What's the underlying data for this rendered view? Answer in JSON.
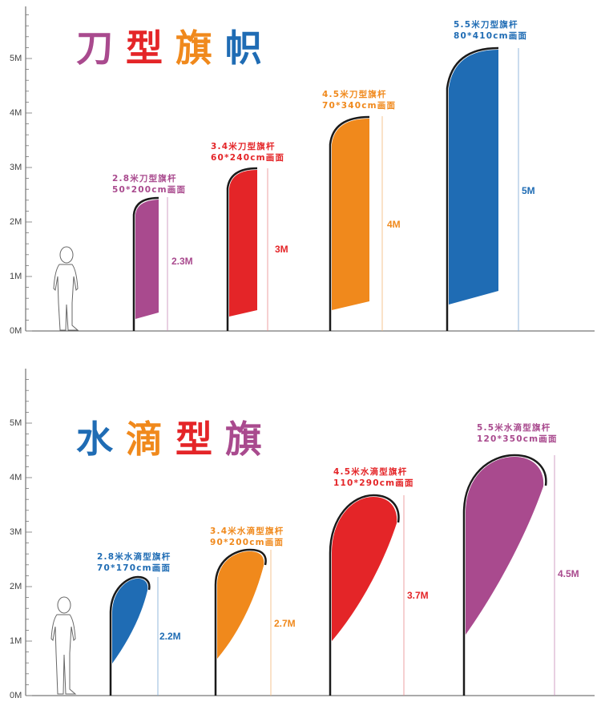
{
  "colors": {
    "blue": "#1f6cb4",
    "red": "#e42528",
    "orange": "#f0891c",
    "purple": "#a94a8e",
    "axis": "#555555",
    "pole": "#1a1a1a"
  },
  "axis_labels": [
    "0M",
    "1M",
    "2M",
    "3M",
    "4M",
    "5M"
  ],
  "sections": [
    {
      "id": "knife",
      "title_chars": [
        {
          "text": "刀",
          "color": "#a94a8e"
        },
        {
          "text": "型",
          "color": "#e42528"
        },
        {
          "text": "旗",
          "color": "#f0891c"
        },
        {
          "text": "帜",
          "color": "#1f6cb4"
        }
      ],
      "flags": [
        {
          "spec": "2.8米刀型旗杆",
          "size": "50*200cm画面",
          "height": "2.3M",
          "value": 2.3,
          "color": "#a94a8e"
        },
        {
          "spec": "3.4米刀型旗杆",
          "size": "60*240cm画面",
          "height": "3M",
          "value": 3,
          "color": "#e42528"
        },
        {
          "spec": "4.5米刀型旗杆",
          "size": "70*340cm画面",
          "height": "4M",
          "value": 4,
          "color": "#f0891c"
        },
        {
          "spec": "5.5米刀型旗杆",
          "size": "80*410cm画面",
          "height": "5M",
          "value": 5,
          "color": "#1f6cb4"
        }
      ]
    },
    {
      "id": "teardrop",
      "title_chars": [
        {
          "text": "水",
          "color": "#1f6cb4"
        },
        {
          "text": "滴",
          "color": "#f0891c"
        },
        {
          "text": "型",
          "color": "#e42528"
        },
        {
          "text": "旗",
          "color": "#a94a8e"
        }
      ],
      "flags": [
        {
          "spec": "2.8米水滴型旗杆",
          "size": "70*170cm画面",
          "height": "2.2M",
          "value": 2.2,
          "color": "#1f6cb4"
        },
        {
          "spec": "3.4米水滴型旗杆",
          "size": "90*200cm画面",
          "height": "2.7M",
          "value": 2.7,
          "color": "#f0891c"
        },
        {
          "spec": "4.5米水滴型旗杆",
          "size": "110*290cm画面",
          "height": "3.7M",
          "value": 3.7,
          "color": "#e42528"
        },
        {
          "spec": "5.5米水滴型旗杆",
          "size": "120*350cm画面",
          "height": "4.5M",
          "value": 4.5,
          "color": "#a94a8e"
        }
      ]
    }
  ]
}
